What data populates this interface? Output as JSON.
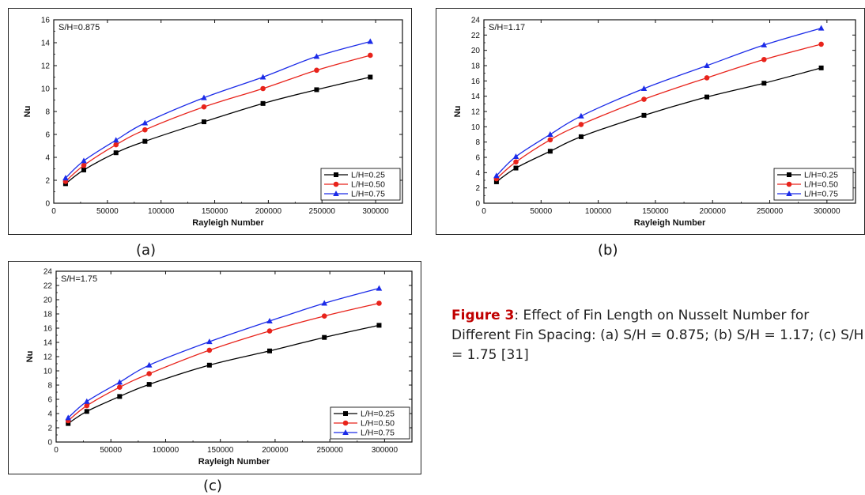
{
  "chart_data": [
    {
      "type": "line",
      "panel_label": "(a)",
      "annotation": "S/H=0.875",
      "xlabel": "Rayleigh Number",
      "ylabel": "Nu",
      "xlim": [
        0,
        325000
      ],
      "ylim": [
        0,
        16
      ],
      "xticks": [
        0,
        50000,
        100000,
        150000,
        200000,
        250000,
        300000
      ],
      "yticks": [
        0,
        2,
        4,
        6,
        8,
        10,
        12,
        14,
        16
      ],
      "legend_position": "bottom-right",
      "x": [
        11000,
        28000,
        58000,
        85000,
        140000,
        195000,
        245000,
        295000
      ],
      "series": [
        {
          "name": "L/H=0.25",
          "color": "#000000",
          "marker": "square",
          "values": [
            1.7,
            2.9,
            4.4,
            5.4,
            7.1,
            8.7,
            9.9,
            11.0
          ]
        },
        {
          "name": "L/H=0.50",
          "color": "#e8231b",
          "marker": "circle",
          "values": [
            1.9,
            3.3,
            5.1,
            6.4,
            8.4,
            10.0,
            11.6,
            12.9
          ]
        },
        {
          "name": "L/H=0.75",
          "color": "#1b2be8",
          "marker": "triangle",
          "values": [
            2.2,
            3.7,
            5.5,
            7.0,
            9.2,
            11.0,
            12.8,
            14.1
          ]
        }
      ]
    },
    {
      "type": "line",
      "panel_label": "(b)",
      "annotation": "S/H=1.17",
      "xlabel": "Rayleigh Number",
      "ylabel": "Nu",
      "xlim": [
        0,
        325000
      ],
      "ylim": [
        0,
        24
      ],
      "xticks": [
        0,
        50000,
        100000,
        150000,
        200000,
        250000,
        300000
      ],
      "yticks": [
        0,
        2,
        4,
        6,
        8,
        10,
        12,
        14,
        16,
        18,
        20,
        22,
        24
      ],
      "legend_position": "bottom-right",
      "x": [
        11000,
        28000,
        58000,
        85000,
        140000,
        195000,
        245000,
        295000
      ],
      "series": [
        {
          "name": "L/H=0.25",
          "color": "#000000",
          "marker": "square",
          "values": [
            2.8,
            4.6,
            6.8,
            8.7,
            11.5,
            13.9,
            15.7,
            17.7
          ]
        },
        {
          "name": "L/H=0.50",
          "color": "#e8231b",
          "marker": "circle",
          "values": [
            3.2,
            5.4,
            8.3,
            10.3,
            13.6,
            16.4,
            18.8,
            20.8
          ]
        },
        {
          "name": "L/H=0.75",
          "color": "#1b2be8",
          "marker": "triangle",
          "values": [
            3.6,
            6.1,
            9.0,
            11.4,
            15.0,
            18.0,
            20.7,
            22.9
          ]
        }
      ]
    },
    {
      "type": "line",
      "panel_label": "(c)",
      "annotation": "S/H=1.75",
      "xlabel": "Rayleigh Number",
      "ylabel": "Nu",
      "xlim": [
        0,
        325000
      ],
      "ylim": [
        0,
        24
      ],
      "xticks": [
        0,
        50000,
        100000,
        150000,
        200000,
        250000,
        300000
      ],
      "yticks": [
        0,
        2,
        4,
        6,
        8,
        10,
        12,
        14,
        16,
        18,
        20,
        22,
        24
      ],
      "legend_position": "bottom-right",
      "x": [
        11000,
        28000,
        58000,
        85000,
        140000,
        195000,
        245000,
        295000
      ],
      "series": [
        {
          "name": "L/H=0.25",
          "color": "#000000",
          "marker": "square",
          "values": [
            2.6,
            4.3,
            6.4,
            8.1,
            10.8,
            12.8,
            14.7,
            16.4
          ]
        },
        {
          "name": "L/H=0.50",
          "color": "#e8231b",
          "marker": "circle",
          "values": [
            3.0,
            5.1,
            7.7,
            9.6,
            12.9,
            15.6,
            17.7,
            19.5
          ]
        },
        {
          "name": "L/H=0.75",
          "color": "#1b2be8",
          "marker": "triangle",
          "values": [
            3.4,
            5.7,
            8.4,
            10.8,
            14.1,
            17.0,
            19.5,
            21.6
          ]
        }
      ]
    }
  ],
  "caption": {
    "label": "Figure 3",
    "text": ": Effect of Fin Length on Nusselt Number for Different Fin Spacing: (a) S/H = 0.875; (b) S/H = 1.17; (c) S/H = 1.75 [31]"
  }
}
